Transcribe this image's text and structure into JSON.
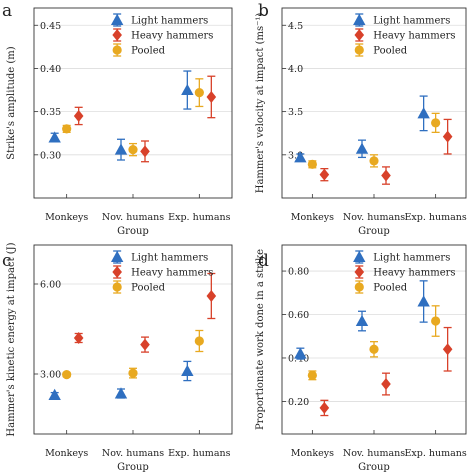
{
  "colors": {
    "light": "#2f6fc0",
    "heavy": "#d8412a",
    "pooled": "#e8a920",
    "grid": "#dddddd",
    "axis": "#333333"
  },
  "chart_data": [
    {
      "type": "scatter",
      "panel_letter": "a",
      "ylabel": "Strike's amplitude (m)",
      "xlabel": "Group",
      "categories": [
        "Monkeys",
        "Nov. humans",
        "Exp. humans"
      ],
      "ylim": [
        0.25,
        0.47
      ],
      "yticks": [
        0.3,
        0.35,
        0.4,
        0.45
      ],
      "ytick_labels": [
        "0.30",
        "0.35",
        "0.40",
        "0.45"
      ],
      "grid": true,
      "legend_position": "top-right",
      "series": [
        {
          "name": "Light hammers",
          "key": "light",
          "marker": "triangle",
          "values": [
            0.32,
            0.306,
            0.375
          ],
          "err": [
            0.005,
            0.012,
            0.022
          ]
        },
        {
          "name": "Heavy hammers",
          "key": "heavy",
          "marker": "diamond",
          "values": [
            0.345,
            0.304,
            0.367
          ],
          "err": [
            0.01,
            0.012,
            0.024
          ]
        },
        {
          "name": "Pooled",
          "key": "pooled",
          "marker": "circle",
          "values": [
            0.33,
            0.306,
            0.372
          ],
          "err": [
            0.004,
            0.007,
            0.016
          ]
        }
      ]
    },
    {
      "type": "scatter",
      "panel_letter": "b",
      "ylabel": "Hammer's velocity at impact (ms⁻¹)",
      "xlabel": "Group",
      "categories": [
        "Monkeys",
        "Nov. humans",
        "Exp. humans"
      ],
      "ylim": [
        2.5,
        4.7
      ],
      "yticks": [
        3.0,
        3.5,
        4.0,
        4.5
      ],
      "ytick_labels": [
        "3.0",
        "3.5",
        "4.0",
        "4.5"
      ],
      "grid": true,
      "legend_position": "top-right",
      "series": [
        {
          "name": "Light hammers",
          "key": "light",
          "marker": "triangle",
          "values": [
            2.97,
            3.07,
            3.48
          ],
          "err": [
            0.04,
            0.1,
            0.2
          ]
        },
        {
          "name": "Heavy hammers",
          "key": "heavy",
          "marker": "diamond",
          "values": [
            2.77,
            2.76,
            3.21
          ],
          "err": [
            0.07,
            0.1,
            0.2
          ]
        },
        {
          "name": "Pooled",
          "key": "pooled",
          "marker": "circle",
          "values": [
            2.89,
            2.93,
            3.37
          ],
          "err": [
            0.04,
            0.07,
            0.11
          ]
        }
      ]
    },
    {
      "type": "scatter",
      "panel_letter": "c",
      "ylabel": "Hammer's kinetic energy at impact (J)",
      "xlabel": "Group",
      "categories": [
        "Monkeys",
        "Nov. humans",
        "Exp. humans"
      ],
      "ylim": [
        1.0,
        7.3
      ],
      "yticks": [
        3.0,
        6.0
      ],
      "ytick_labels": [
        "3.00",
        "6.00"
      ],
      "grid": true,
      "legend_position": "top-right",
      "series": [
        {
          "name": "Light hammers",
          "key": "light",
          "marker": "triangle",
          "values": [
            2.3,
            2.35,
            3.1
          ],
          "err": [
            0.08,
            0.15,
            0.32
          ]
        },
        {
          "name": "Heavy hammers",
          "key": "heavy",
          "marker": "diamond",
          "values": [
            4.2,
            3.98,
            5.6
          ],
          "err": [
            0.15,
            0.25,
            0.75
          ]
        },
        {
          "name": "Pooled",
          "key": "pooled",
          "marker": "circle",
          "values": [
            2.98,
            3.03,
            4.1
          ],
          "err": [
            0.07,
            0.16,
            0.35
          ]
        }
      ]
    },
    {
      "type": "scatter",
      "panel_letter": "d",
      "ylabel": "Proportionate work done in a strike",
      "xlabel": "Group",
      "categories": [
        "Monkeys",
        "Nov. humans",
        "Exp. humans"
      ],
      "ylim": [
        0.05,
        0.92
      ],
      "yticks": [
        0.2,
        0.4,
        0.6,
        0.8
      ],
      "ytick_labels": [
        "0.20",
        "0.40",
        "0.60",
        "0.80"
      ],
      "grid": true,
      "legend_position": "top-right",
      "series": [
        {
          "name": "Light hammers",
          "key": "light",
          "marker": "triangle",
          "values": [
            0.42,
            0.57,
            0.66
          ],
          "err": [
            0.025,
            0.045,
            0.095
          ]
        },
        {
          "name": "Heavy hammers",
          "key": "heavy",
          "marker": "diamond",
          "values": [
            0.17,
            0.28,
            0.44
          ],
          "err": [
            0.035,
            0.05,
            0.1
          ]
        },
        {
          "name": "Pooled",
          "key": "pooled",
          "marker": "circle",
          "values": [
            0.32,
            0.44,
            0.57
          ],
          "err": [
            0.02,
            0.035,
            0.07
          ]
        }
      ]
    }
  ]
}
